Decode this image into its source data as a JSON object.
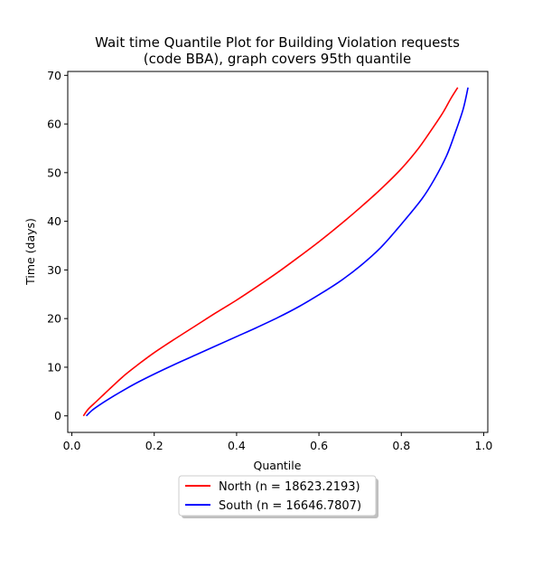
{
  "chart_data": {
    "type": "line",
    "title": "Wait time Quantile Plot for Building Violation  requests",
    "subtitle": "(code BBA), graph covers 95th quantile",
    "xlabel": "Quantile",
    "ylabel": "Time (days)",
    "xlim": [
      -0.01,
      1.01
    ],
    "ylim": [
      -3.4,
      70.8
    ],
    "xticks": [
      0.0,
      0.2,
      0.4,
      0.6,
      0.8,
      1.0
    ],
    "xtick_labels": [
      "0.0",
      "0.2",
      "0.4",
      "0.6",
      "0.8",
      "1.0"
    ],
    "yticks": [
      0,
      10,
      20,
      30,
      40,
      50,
      60,
      70
    ],
    "ytick_labels": [
      "0",
      "10",
      "20",
      "30",
      "40",
      "50",
      "60",
      "70"
    ],
    "grid": false,
    "legend_position": "below",
    "series": [
      {
        "name": "North (n = 18623.2193)",
        "color": "#ff0000",
        "x": [
          0.028,
          0.04,
          0.06,
          0.08,
          0.1,
          0.13,
          0.16,
          0.2,
          0.25,
          0.3,
          0.35,
          0.4,
          0.45,
          0.5,
          0.55,
          0.6,
          0.65,
          0.7,
          0.75,
          0.8,
          0.84,
          0.87,
          0.9,
          0.92,
          0.937
        ],
        "y": [
          0,
          1.4,
          3.0,
          4.6,
          6.2,
          8.5,
          10.5,
          13.0,
          15.8,
          18.5,
          21.2,
          23.8,
          26.6,
          29.5,
          32.6,
          35.8,
          39.2,
          42.8,
          46.6,
          50.8,
          54.8,
          58.4,
          62.2,
          65.2,
          67.5
        ]
      },
      {
        "name": "South (n = 16646.7807)",
        "color": "#0000ff",
        "x": [
          0.035,
          0.05,
          0.07,
          0.1,
          0.13,
          0.16,
          0.2,
          0.25,
          0.3,
          0.35,
          0.4,
          0.45,
          0.5,
          0.55,
          0.6,
          0.65,
          0.7,
          0.75,
          0.8,
          0.85,
          0.88,
          0.91,
          0.93,
          0.95,
          0.962
        ],
        "y": [
          0,
          1.2,
          2.4,
          4.0,
          5.5,
          6.9,
          8.6,
          10.6,
          12.5,
          14.4,
          16.3,
          18.2,
          20.2,
          22.4,
          24.9,
          27.6,
          30.8,
          34.6,
          39.4,
          44.6,
          48.6,
          53.5,
          58.0,
          63.0,
          67.5
        ]
      }
    ]
  }
}
